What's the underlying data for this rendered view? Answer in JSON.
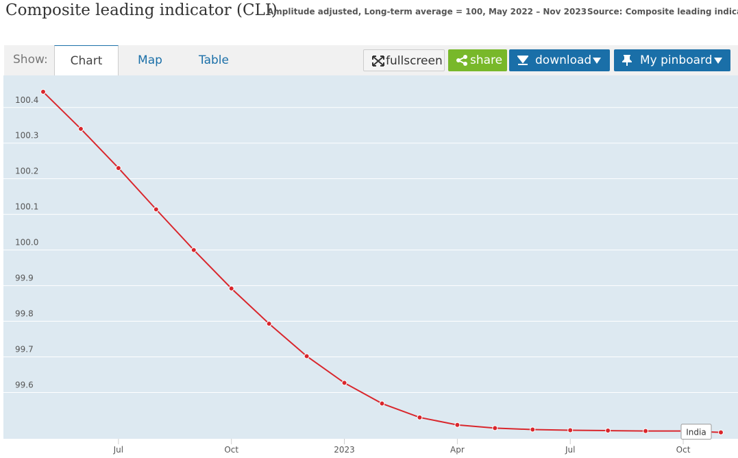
{
  "header": {
    "title": "Composite leading indicator (CLI)",
    "subtitle": "Amplitude adjusted, Long-term average = 100, May 2022 – Nov 2023",
    "source": "Source: Composite leading indicators"
  },
  "toolbar": {
    "show_label": "Show:",
    "tabs": [
      "Chart",
      "Map",
      "Table"
    ],
    "buttons": [
      "fullscreen",
      "share",
      "download",
      "My pinboard"
    ]
  },
  "chart_data": {
    "type": "line",
    "categories": [
      null,
      null,
      "Jul",
      null,
      null,
      "Oct",
      null,
      null,
      "2023",
      null,
      null,
      "Apr",
      null,
      null,
      "Jul",
      null,
      null,
      "Oct",
      null
    ],
    "series": [
      {
        "name": "India",
        "color": "#d9262c",
        "values": [
          100.444,
          100.34,
          100.23,
          100.114,
          100.0,
          99.892,
          99.793,
          99.702,
          99.627,
          99.569,
          99.53,
          99.509,
          99.5,
          99.496,
          99.494,
          99.493,
          99.492,
          99.492,
          99.488
        ]
      }
    ],
    "ylim": [
      99.47,
      100.49
    ],
    "yticks": [
      99.6,
      99.7,
      99.8,
      99.9,
      {
        "value": 100,
        "label": "100.0"
      },
      100.1,
      100.2,
      100.3,
      100.4
    ],
    "grid": true
  }
}
